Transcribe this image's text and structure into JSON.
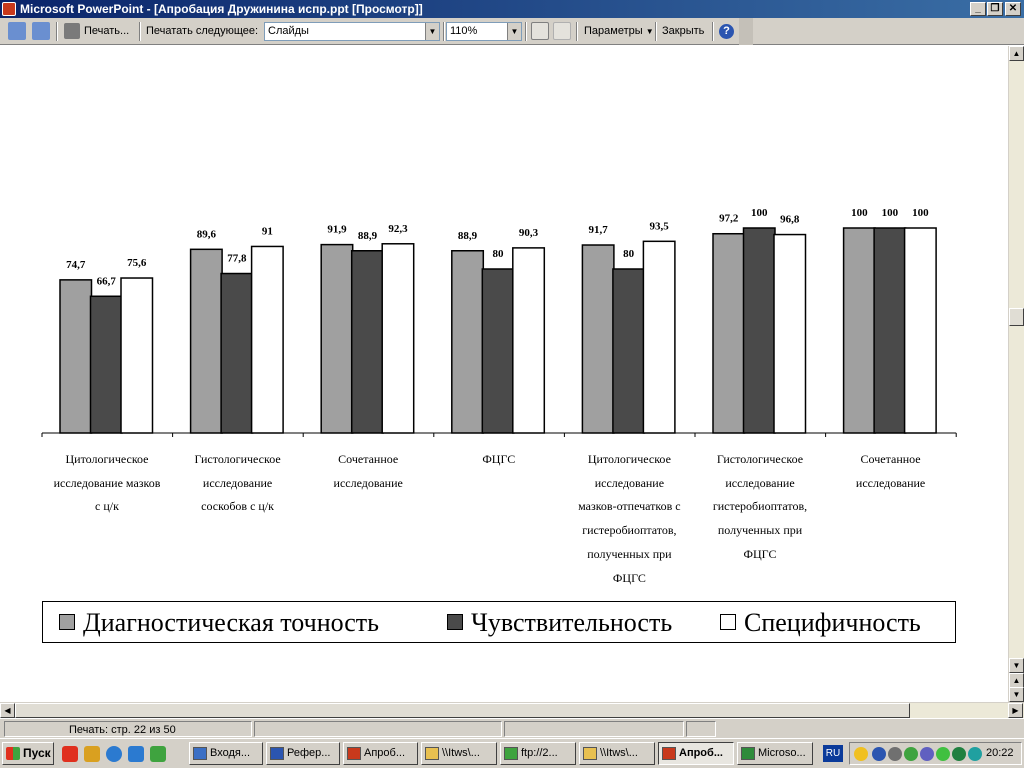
{
  "window": {
    "title": "Microsoft PowerPoint - [Апробация Дружинина испр.ppt [Просмотр]]",
    "buttons": [
      "_",
      "❐",
      "✕"
    ]
  },
  "toolbar": {
    "print_label": "Печать...",
    "print_what_label": "Печатать следующее:",
    "print_what_value": "Слайды",
    "zoom_value": "110%",
    "options_label": "Параметры",
    "close_label": "Закрыть",
    "help_glyph": "?"
  },
  "chart_data": {
    "type": "bar",
    "categories": [
      "Цитологическое исследование мазков с ц/к",
      "Гистологическое исследование соскобов с ц/к",
      "Сочетанное исследование",
      "ФЦГС",
      "Цитологическое исследование мазков-отпечатков с гистеробиоптатов, полученных при ФЦГС",
      "Гистологическое исследование гистеробиоптатов, полученных при ФЦГС",
      "Сочетанное исследование"
    ],
    "category_lines": [
      [
        "Цитологическое",
        "исследование мазков",
        "с  ц/к"
      ],
      [
        "Гистологическое",
        "исследование",
        "соскобов с  ц/к"
      ],
      [
        "Сочетанное",
        "исследование"
      ],
      [
        "ФЦГС"
      ],
      [
        "Цитологическое",
        "исследование",
        "мазков-отпечатков с",
        "гистеробиоптатов,",
        "полученных при",
        "ФЦГС"
      ],
      [
        "Гистологическое",
        "исследование",
        "гистеробиоптатов,",
        "полученных при",
        "ФЦГС"
      ],
      [
        "Сочетанное",
        "исследование"
      ]
    ],
    "series": [
      {
        "name": "Диагностическая точность",
        "color": "#a0a0a0",
        "values": [
          74.7,
          89.6,
          91.9,
          88.9,
          91.7,
          97.2,
          100
        ],
        "labels": [
          "74,7",
          "89,6",
          "91,9",
          "88,9",
          "91,7",
          "97,2",
          "100"
        ]
      },
      {
        "name": "Чувствительность",
        "color": "#4a4a4a",
        "values": [
          66.7,
          77.8,
          88.9,
          80,
          80,
          100,
          100
        ],
        "labels": [
          "66,7",
          "77,8",
          "88,9",
          "80",
          "80",
          "100",
          "100"
        ]
      },
      {
        "name": "Специфичность",
        "color": "#ffffff",
        "values": [
          75.6,
          91,
          92.3,
          90.3,
          93.5,
          96.8,
          100
        ],
        "labels": [
          "75,6",
          "91",
          "92,3",
          "90,3",
          "93,5",
          "96,8",
          "100"
        ]
      }
    ],
    "ylim": [
      0,
      100
    ],
    "grid": false,
    "legend_position": "bottom"
  },
  "status": {
    "text": "Печать: стр. 22 из 50"
  },
  "taskbar": {
    "start_label": "Пуск",
    "tasks": [
      {
        "label": "Входя...",
        "color": "#3b6fc4"
      },
      {
        "label": "Рефер...",
        "color": "#2b55b0"
      },
      {
        "label": "Апроб...",
        "color": "#c8391c"
      },
      {
        "label": "\\\\Itws\\...",
        "color": "#e8c050"
      },
      {
        "label": "ftp://2...",
        "color": "#3fa33f"
      },
      {
        "label": "\\\\Itws\\...",
        "color": "#e8c050"
      },
      {
        "label": "Апроб...",
        "color": "#c8391c"
      },
      {
        "label": "Microso...",
        "color": "#2e8b3a"
      }
    ],
    "lang": "RU",
    "clock": "20:22"
  }
}
